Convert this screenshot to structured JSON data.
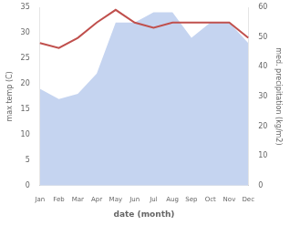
{
  "chart_data": {
    "type": "line",
    "xlabel": "date (month)",
    "ylabel": "max temp (C)",
    "y2label": "med. precipitation (kg/m2)",
    "categories": [
      "Jan",
      "Feb",
      "Mar",
      "Apr",
      "May",
      "Jun",
      "Jul",
      "Aug",
      "Sep",
      "Oct",
      "Nov",
      "Dec"
    ],
    "series": [
      {
        "type": "area",
        "color": "#c5d4f0",
        "values": [
          19,
          17,
          18,
          22,
          32,
          32,
          34,
          34,
          29,
          32,
          32,
          28
        ]
      },
      {
        "type": "line",
        "color": "#c0504d",
        "values": [
          28.0,
          27.0,
          29.0,
          32.0,
          34.5,
          32.0,
          31.0,
          32.0,
          32.0,
          32.0,
          32.0,
          29.0
        ]
      }
    ],
    "ylim": [
      0,
      35
    ],
    "yticks": [
      0,
      5,
      10,
      15,
      20,
      25,
      30,
      35
    ],
    "y2lim": [
      0,
      60
    ],
    "y2ticks": [
      0,
      10,
      20,
      30,
      40,
      50,
      60
    ],
    "grid": false,
    "legend": false
  }
}
